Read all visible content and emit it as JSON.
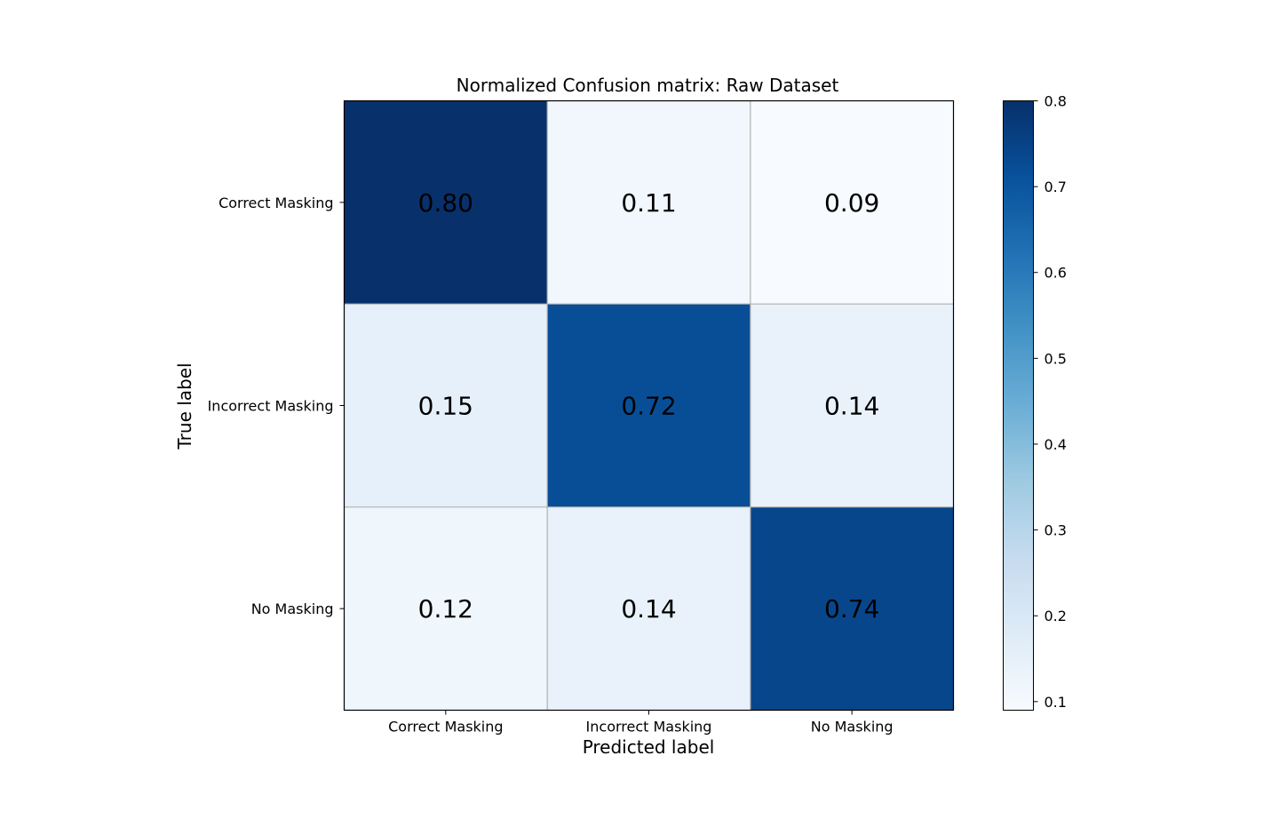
{
  "chart_data": {
    "type": "heatmap",
    "title": "Normalized Confusion matrix: Raw Dataset",
    "xlabel": "Predicted label",
    "ylabel": "True label",
    "x_categories": [
      "Correct Masking",
      "Incorrect Masking",
      "No Masking"
    ],
    "y_categories": [
      "Correct Masking",
      "Incorrect Masking",
      "No Masking"
    ],
    "values": [
      [
        0.8,
        0.11,
        0.09
      ],
      [
        0.15,
        0.72,
        0.14
      ],
      [
        0.12,
        0.14,
        0.74
      ]
    ],
    "cell_labels": [
      [
        "0.80",
        "0.11",
        "0.09"
      ],
      [
        "0.15",
        "0.72",
        "0.14"
      ],
      [
        "0.12",
        "0.14",
        "0.74"
      ]
    ],
    "colormap": "Blues",
    "color_min": "#f7fbff",
    "color_max": "#08306b",
    "colorbar": {
      "vmin": 0.09,
      "vmax": 0.8,
      "ticks": [
        "0.1",
        "0.2",
        "0.3",
        "0.4",
        "0.5",
        "0.6",
        "0.7",
        "0.8"
      ],
      "tick_values": [
        0.1,
        0.2,
        0.3,
        0.4,
        0.5,
        0.6,
        0.7,
        0.8
      ]
    },
    "grid": true
  }
}
